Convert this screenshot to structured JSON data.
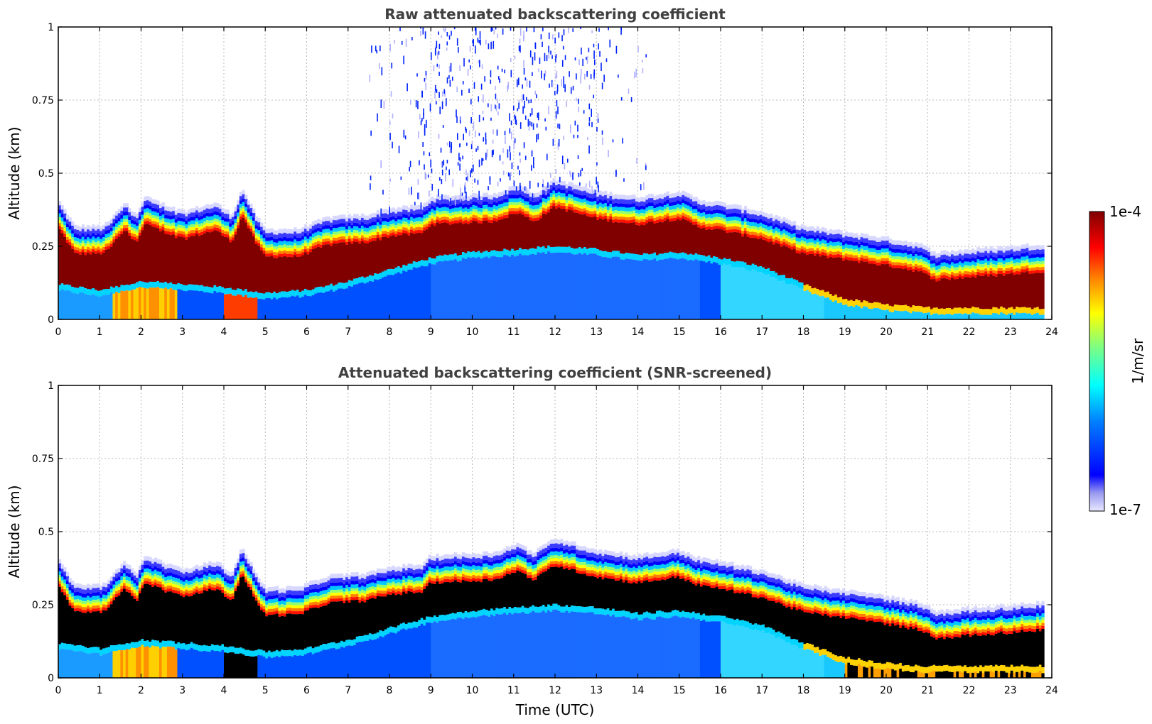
{
  "chart_data": [
    {
      "type": "heatmap",
      "title": "Raw attenuated backscattering coefficient",
      "xlabel": "",
      "ylabel": "Altitude (km)",
      "xlim": [
        0,
        24
      ],
      "ylim": [
        0,
        1
      ],
      "x_ticks": [
        "0",
        "1",
        "2",
        "3",
        "4",
        "5",
        "6",
        "7",
        "8",
        "9",
        "10",
        "11",
        "12",
        "13",
        "14",
        "15",
        "16",
        "17",
        "18",
        "19",
        "20",
        "21",
        "22",
        "23",
        "24"
      ],
      "y_ticks": [
        "0",
        "0.25",
        "0.5",
        "0.75",
        "1"
      ],
      "grid": true,
      "screened": false,
      "layer_top_km": [
        [
          0,
          0.38
        ],
        [
          0.4,
          0.29
        ],
        [
          1.0,
          0.29
        ],
        [
          1.2,
          0.3
        ],
        [
          1.6,
          0.37
        ],
        [
          1.9,
          0.33
        ],
        [
          2.1,
          0.39
        ],
        [
          3.0,
          0.34
        ],
        [
          3.8,
          0.37
        ],
        [
          4.2,
          0.33
        ],
        [
          4.45,
          0.42
        ],
        [
          4.8,
          0.32
        ],
        [
          5.0,
          0.28
        ],
        [
          5.8,
          0.28
        ],
        [
          6.5,
          0.32
        ],
        [
          7.5,
          0.33
        ],
        [
          8.0,
          0.35
        ],
        [
          8.8,
          0.36
        ],
        [
          9.0,
          0.39
        ],
        [
          10.5,
          0.4
        ],
        [
          11.1,
          0.43
        ],
        [
          11.5,
          0.4
        ],
        [
          12.0,
          0.45
        ],
        [
          13.0,
          0.41
        ],
        [
          14.0,
          0.39
        ],
        [
          15.0,
          0.41
        ],
        [
          15.5,
          0.38
        ],
        [
          16.0,
          0.37
        ],
        [
          17.0,
          0.34
        ],
        [
          18.0,
          0.29
        ],
        [
          19.0,
          0.27
        ],
        [
          20.0,
          0.25
        ],
        [
          20.8,
          0.23
        ],
        [
          21.2,
          0.2
        ],
        [
          22.0,
          0.21
        ],
        [
          23.0,
          0.22
        ],
        [
          23.8,
          0.23
        ]
      ],
      "layer_bottom_km": [
        [
          0,
          0.12
        ],
        [
          1.0,
          0.1
        ],
        [
          2.0,
          0.13
        ],
        [
          3.0,
          0.12
        ],
        [
          4.0,
          0.11
        ],
        [
          5.0,
          0.09
        ],
        [
          6.0,
          0.1
        ],
        [
          7.0,
          0.13
        ],
        [
          8.0,
          0.17
        ],
        [
          9.0,
          0.21
        ],
        [
          10.0,
          0.23
        ],
        [
          12.0,
          0.25
        ],
        [
          13.0,
          0.24
        ],
        [
          14.0,
          0.22
        ],
        [
          15.0,
          0.23
        ],
        [
          16.0,
          0.21
        ],
        [
          17.0,
          0.18
        ],
        [
          18.0,
          0.12
        ],
        [
          19.0,
          0.07
        ],
        [
          20.0,
          0.05
        ],
        [
          21.0,
          0.04
        ],
        [
          22.0,
          0.04
        ],
        [
          23.8,
          0.04
        ]
      ],
      "aerosol_mixed_layer": [
        [
          1.3,
          2.9
        ],
        [
          4.0,
          4.8
        ]
      ],
      "noise_region_hours": [
        7.5,
        14.2
      ]
    },
    {
      "type": "heatmap",
      "title": "Attenuated backscattering coefficient (SNR-screened)",
      "xlabel": "Time (UTC)",
      "ylabel": "Altitude (km)",
      "xlim": [
        0,
        24
      ],
      "ylim": [
        0,
        1
      ],
      "x_ticks": [
        "0",
        "1",
        "2",
        "3",
        "4",
        "5",
        "6",
        "7",
        "8",
        "9",
        "10",
        "11",
        "12",
        "13",
        "14",
        "15",
        "16",
        "17",
        "18",
        "19",
        "20",
        "21",
        "22",
        "23",
        "24"
      ],
      "y_ticks": [
        "0",
        "0.25",
        "0.5",
        "0.75",
        "1"
      ],
      "grid": true,
      "screened": true
    }
  ],
  "colorbar": {
    "label": "1/m/sr",
    "max_label": "1e-4",
    "min_label": "1e-7",
    "colormap": "jet"
  }
}
